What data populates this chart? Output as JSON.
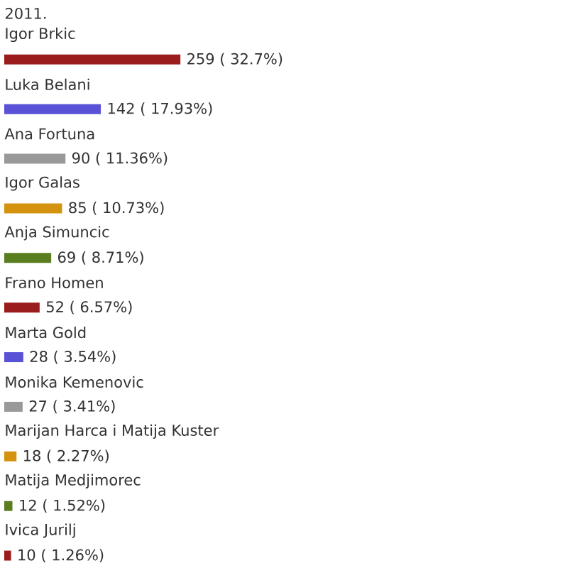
{
  "chart_data": {
    "type": "bar",
    "orientation": "horizontal",
    "title": "2011.",
    "categories": [
      "Igor Brkic",
      "Luka Belani",
      "Ana Fortuna",
      "Igor Galas",
      "Anja Simuncic",
      "Frano Homen",
      "Marta Gold",
      "Monika Kemenovic",
      "Marijan Harca i Matija Kuster",
      "Matija Medjimorec",
      "Ivica Jurilj"
    ],
    "values": [
      259,
      142,
      90,
      85,
      69,
      52,
      28,
      27,
      18,
      12,
      10
    ],
    "value_labels": [
      "259 ( 32.7%)",
      "142 ( 17.93%)",
      "90 ( 11.36%)",
      "85 ( 10.73%)",
      "69 ( 8.71%)",
      "52 ( 6.57%)",
      "28 ( 3.54%)",
      "27 ( 3.41%)",
      "18 ( 2.27%)",
      "12 ( 1.52%)",
      "10 ( 1.26%)"
    ],
    "colors": [
      "#9b1c1c",
      "#5a52d6",
      "#999999",
      "#d4930e",
      "#5a7d1f",
      "#9b1c1c",
      "#5a52d6",
      "#999999",
      "#d4930e",
      "#5a7d1f",
      "#9b1c1c"
    ]
  }
}
